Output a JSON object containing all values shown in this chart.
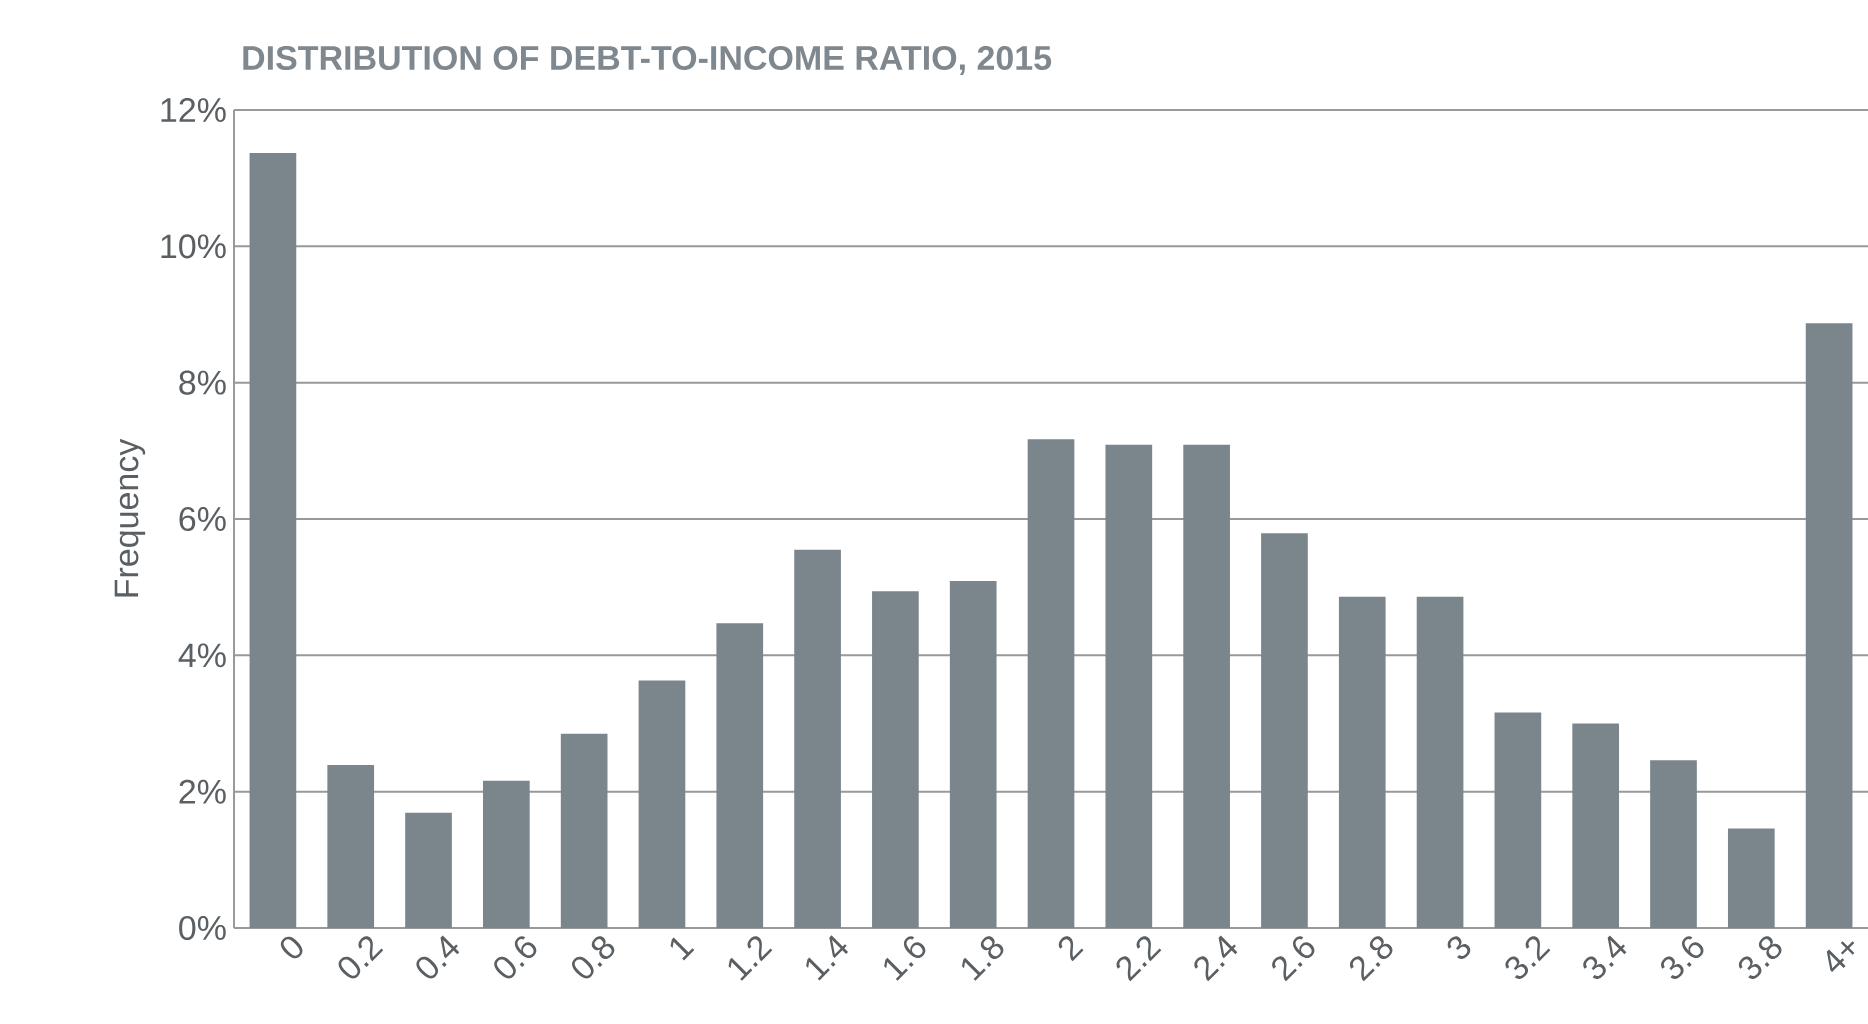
{
  "chart_data": {
    "type": "bar",
    "title": "DISTRIBUTION OF DEBT-TO-INCOME RATIO, 2015",
    "ylabel": "Frequency",
    "categories": [
      "0",
      "0.2",
      "0.4",
      "0.6",
      "0.8",
      "1",
      "1.2",
      "1.4",
      "1.6",
      "1.8",
      "2",
      "2.2",
      "2.4",
      "2.6",
      "2.8",
      "3",
      "3.2",
      "3.4",
      "3.6",
      "3.8",
      "4+"
    ],
    "values": [
      11.37,
      2.39,
      1.69,
      2.16,
      2.85,
      3.63,
      4.47,
      5.55,
      4.94,
      5.09,
      7.17,
      7.09,
      7.09,
      5.79,
      4.86,
      4.86,
      3.16,
      3.0,
      2.46,
      1.46,
      8.87
    ],
    "color": "#7b868c",
    "ylim": [
      0,
      12
    ],
    "yticks": [
      {
        "value": 0,
        "label": "0%"
      },
      {
        "value": 2,
        "label": "2%"
      },
      {
        "value": 4,
        "label": "4%"
      },
      {
        "value": 6,
        "label": "6%"
      },
      {
        "value": 8,
        "label": "8%"
      },
      {
        "value": 10,
        "label": "10%"
      },
      {
        "value": 12,
        "label": "12%"
      }
    ],
    "grid": "y"
  }
}
